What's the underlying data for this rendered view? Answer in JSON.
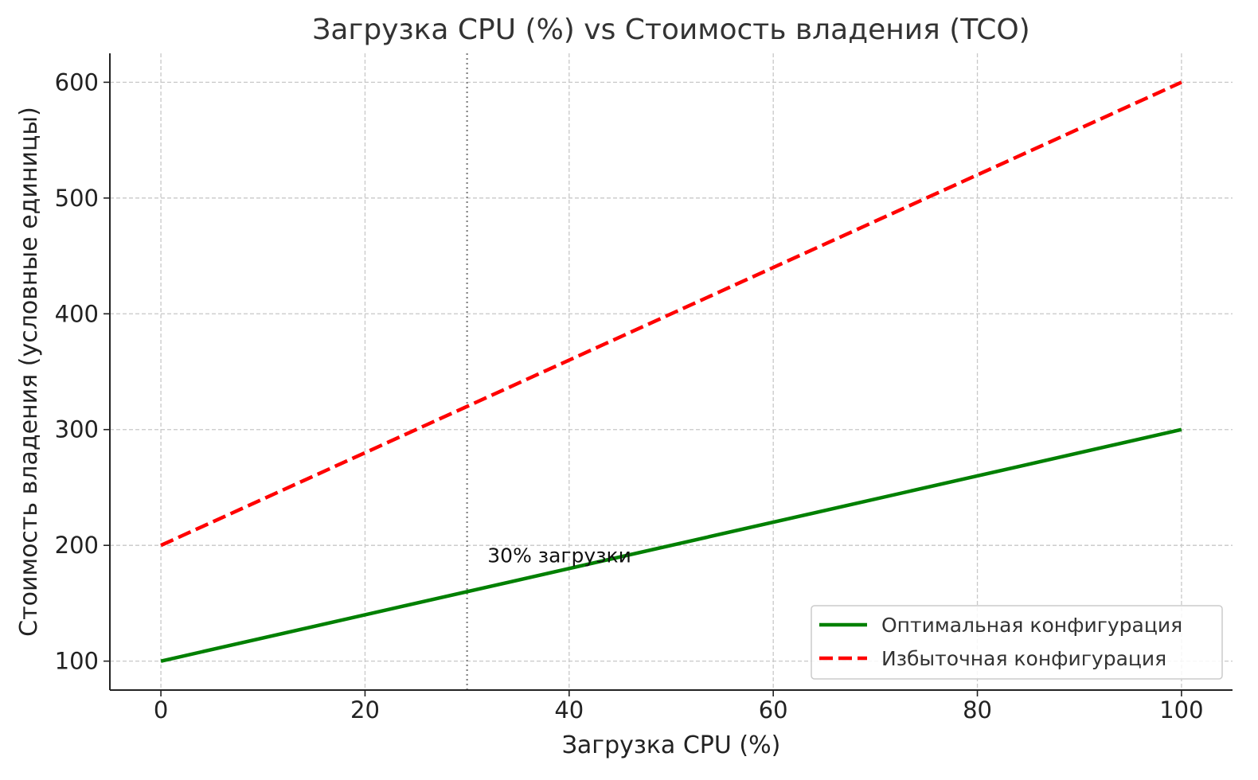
{
  "chart_data": {
    "type": "line",
    "title": "Загрузка CPU (%) vs Стоимость владения (TCO)",
    "xlabel": "Загрузка CPU (%)",
    "ylabel": "Стоимость владения (условные единицы)",
    "xlim": [
      -5,
      105
    ],
    "ylim": [
      75,
      625
    ],
    "xticks": [
      0,
      20,
      40,
      60,
      80,
      100
    ],
    "yticks": [
      100,
      200,
      300,
      400,
      500,
      600
    ],
    "grid": true,
    "legend_position": "bottom-right",
    "series": [
      {
        "name": "Оптимальная конфигурация",
        "color": "#008000",
        "style": "solid",
        "x": [
          0,
          100
        ],
        "y": [
          100,
          300
        ]
      },
      {
        "name": "Избыточная конфигурация",
        "color": "#ff0000",
        "style": "dashed",
        "x": [
          0,
          100
        ],
        "y": [
          200,
          600
        ]
      }
    ],
    "reference_line": {
      "x": 30,
      "color": "#808080",
      "style": "dotted"
    },
    "annotation": {
      "text": "30% загрузки",
      "x": 32,
      "y": 180
    }
  }
}
